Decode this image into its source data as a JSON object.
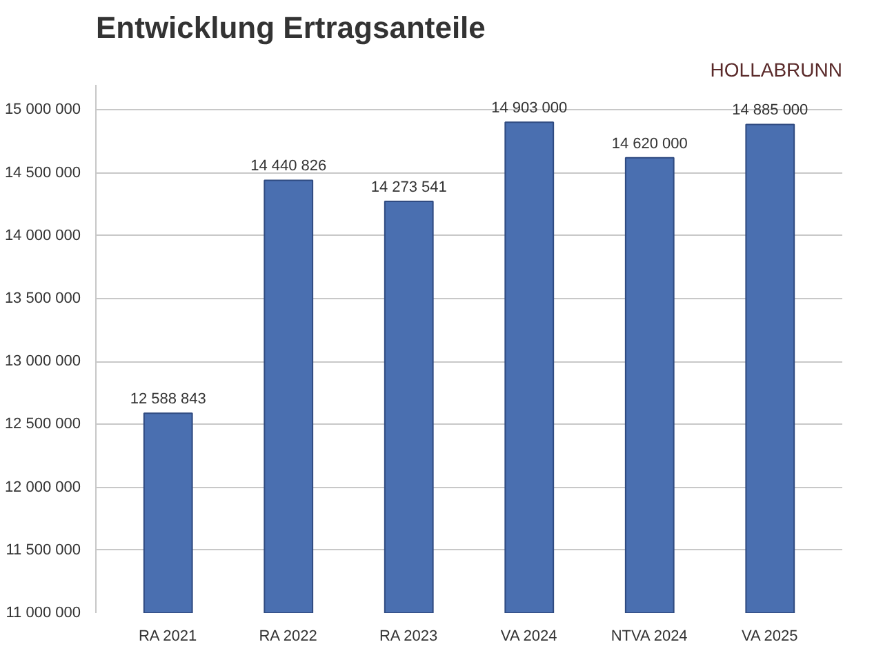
{
  "chart_data": {
    "type": "bar",
    "title": "Entwicklung Ertragsanteile",
    "annotations": [
      "HOLLABRUNN"
    ],
    "categories": [
      "RA 2021",
      "RA 2022",
      "RA 2023",
      "VA 2024",
      "NTVA 2024",
      "VA 2025"
    ],
    "values": [
      12588843,
      14440826,
      14273541,
      14903000,
      14620000,
      14885000
    ],
    "value_labels": [
      "12 588 843",
      "14 440 826",
      "14 273 541",
      "14 903 000",
      "14 620 000",
      "14 885 000"
    ],
    "color": "#4a6fb0",
    "ylim": [
      11000000,
      15200000
    ],
    "yticks": [
      {
        "value": 11000000,
        "label": "11 000 000"
      },
      {
        "value": 11500000,
        "label": "11 500 000"
      },
      {
        "value": 12000000,
        "label": "12 000 000"
      },
      {
        "value": 12500000,
        "label": "12 500 000"
      },
      {
        "value": 13000000,
        "label": "13 000 000"
      },
      {
        "value": 13500000,
        "label": "13 500 000"
      },
      {
        "value": 14000000,
        "label": "14 000 000"
      },
      {
        "value": 14500000,
        "label": "14 500 000"
      },
      {
        "value": 15000000,
        "label": "15 000 000"
      }
    ],
    "grid": "y"
  }
}
